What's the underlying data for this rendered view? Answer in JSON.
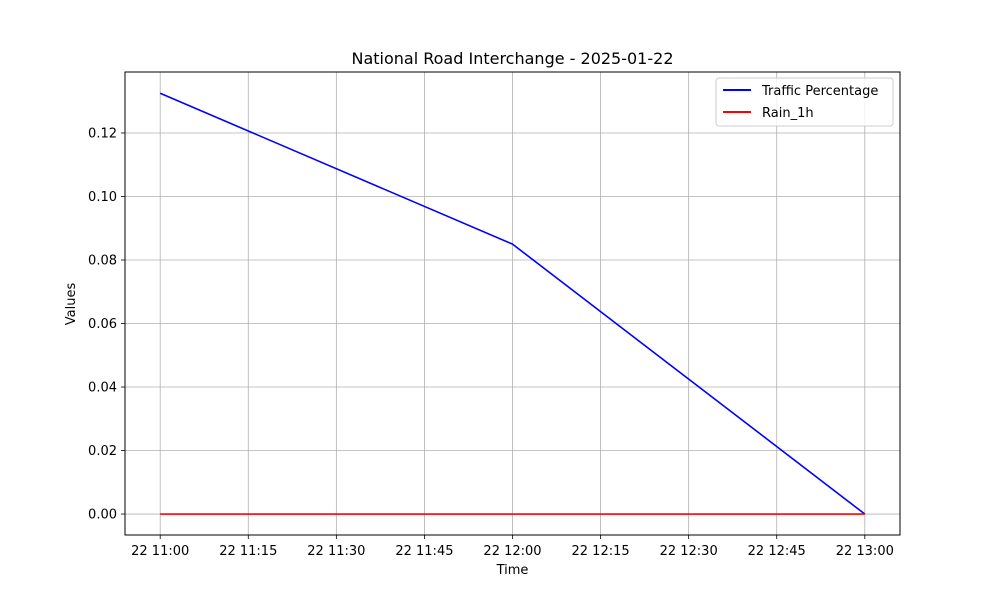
{
  "chart_data": {
    "type": "line",
    "title": "National Road Interchange - 2025-01-22",
    "xlabel": "Time",
    "ylabel": "Values",
    "x": [
      "22 11:00",
      "22 12:00",
      "22 13:00"
    ],
    "x_ticks": [
      "22 11:00",
      "22 11:15",
      "22 11:30",
      "22 11:45",
      "22 12:00",
      "22 12:15",
      "22 12:30",
      "22 12:45",
      "22 13:00"
    ],
    "y_ticks": [
      "0.00",
      "0.02",
      "0.04",
      "0.06",
      "0.08",
      "0.10",
      "0.12"
    ],
    "ylim": [
      -0.0066,
      0.1392
    ],
    "grid": true,
    "legend_position": "top-right",
    "series": [
      {
        "name": "Traffic Percentage",
        "color": "#0000ff",
        "values": [
          0.1325,
          0.085,
          0.0
        ]
      },
      {
        "name": "Rain_1h",
        "color": "#ff0000",
        "values": [
          0.0,
          0.0,
          0.0
        ]
      }
    ]
  }
}
